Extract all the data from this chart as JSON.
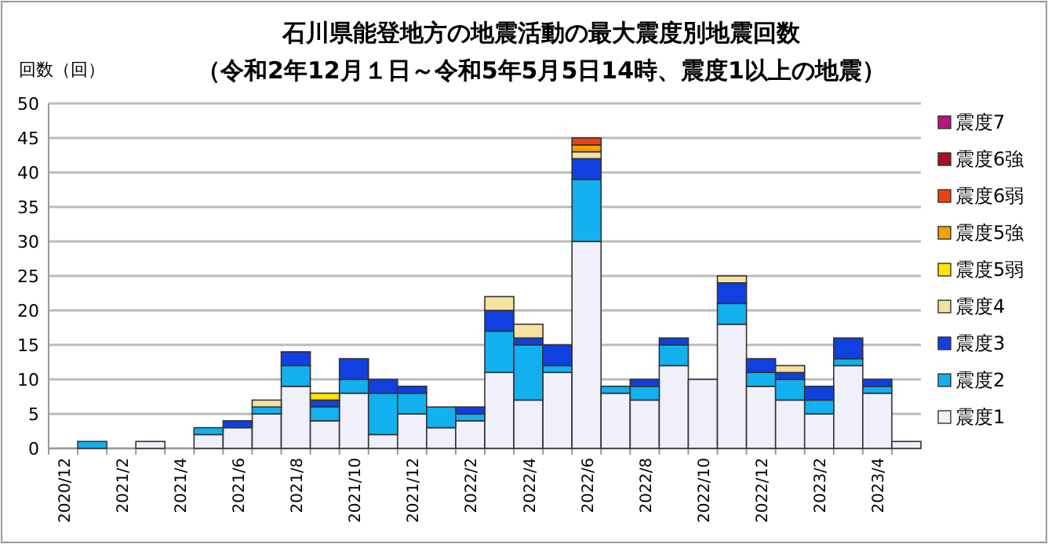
{
  "chart_data": {
    "type": "bar",
    "stacked": true,
    "title": "石川県能登地方の地震活動の最大震度別地震回数",
    "subtitle": "（令和2年12月１日～令和5年5月5日14時、震度1以上の地震）",
    "ylabel": "回数（回）",
    "categories": [
      "2020/12",
      null,
      "2021/2",
      null,
      "2021/4",
      null,
      "2021/6",
      null,
      "2021/8",
      null,
      "2021/10",
      null,
      "2021/12",
      null,
      "2022/2",
      null,
      "2022/4",
      null,
      "2022/6",
      null,
      "2022/8",
      null,
      "2022/10",
      null,
      "2022/12",
      null,
      "2023/2",
      null,
      "2023/4",
      null
    ],
    "ylim": [
      0,
      50
    ],
    "yticks": [
      0,
      5,
      10,
      15,
      20,
      25,
      30,
      35,
      40,
      45,
      50
    ],
    "grid": "y",
    "legend": "right",
    "series": [
      {
        "name": "震度1",
        "color": "#f0f0fa",
        "values": [
          0,
          0,
          0,
          1,
          0,
          2,
          3,
          5,
          9,
          4,
          8,
          2,
          5,
          3,
          4,
          11,
          7,
          11,
          30,
          8,
          7,
          12,
          10,
          18,
          9,
          7,
          5,
          12,
          8,
          1
        ]
      },
      {
        "name": "震度2",
        "color": "#12b0ee",
        "values": [
          0,
          1,
          0,
          0,
          0,
          1,
          0,
          1,
          3,
          2,
          2,
          6,
          3,
          3,
          1,
          6,
          8,
          1,
          9,
          1,
          2,
          3,
          0,
          3,
          2,
          3,
          2,
          1,
          1,
          0
        ]
      },
      {
        "name": "震度3",
        "color": "#1040e0",
        "values": [
          0,
          0,
          0,
          0,
          0,
          0,
          1,
          0,
          2,
          1,
          3,
          2,
          1,
          0,
          1,
          3,
          1,
          3,
          3,
          0,
          1,
          1,
          0,
          3,
          2,
          1,
          2,
          3,
          1,
          0
        ]
      },
      {
        "name": "震度4",
        "color": "#f6e2a0",
        "values": [
          0,
          0,
          0,
          0,
          0,
          0,
          0,
          1,
          0,
          0,
          0,
          0,
          0,
          0,
          0,
          2,
          2,
          0,
          1,
          0,
          0,
          0,
          0,
          1,
          0,
          1,
          0,
          0,
          0,
          0
        ]
      },
      {
        "name": "震度5弱",
        "color": "#ffe600",
        "values": [
          0,
          0,
          0,
          0,
          0,
          0,
          0,
          0,
          0,
          1,
          0,
          0,
          0,
          0,
          0,
          0,
          0,
          0,
          0,
          0,
          0,
          0,
          0,
          0,
          0,
          0,
          0,
          0,
          0,
          0
        ]
      },
      {
        "name": "震度5強",
        "color": "#f5a000",
        "values": [
          0,
          0,
          0,
          0,
          0,
          0,
          0,
          0,
          0,
          0,
          0,
          0,
          0,
          0,
          0,
          0,
          0,
          0,
          1,
          0,
          0,
          0,
          0,
          0,
          0,
          0,
          0,
          0,
          0,
          0
        ]
      },
      {
        "name": "震度6弱",
        "color": "#f04010",
        "values": [
          0,
          0,
          0,
          0,
          0,
          0,
          0,
          0,
          0,
          0,
          0,
          0,
          0,
          0,
          0,
          0,
          0,
          0,
          1,
          0,
          0,
          0,
          0,
          0,
          0,
          0,
          0,
          0,
          0,
          0
        ]
      },
      {
        "name": "震度6強",
        "color": "#a8102a",
        "values": [
          0,
          0,
          0,
          0,
          0,
          0,
          0,
          0,
          0,
          0,
          0,
          0,
          0,
          0,
          0,
          0,
          0,
          0,
          0,
          0,
          0,
          0,
          0,
          0,
          0,
          0,
          0,
          0,
          0,
          0
        ]
      },
      {
        "name": "震度7",
        "color": "#b8147c",
        "values": [
          0,
          0,
          0,
          0,
          0,
          0,
          0,
          0,
          0,
          0,
          0,
          0,
          0,
          0,
          0,
          0,
          0,
          0,
          0,
          0,
          0,
          0,
          0,
          0,
          0,
          0,
          0,
          0,
          0,
          0
        ]
      }
    ]
  }
}
